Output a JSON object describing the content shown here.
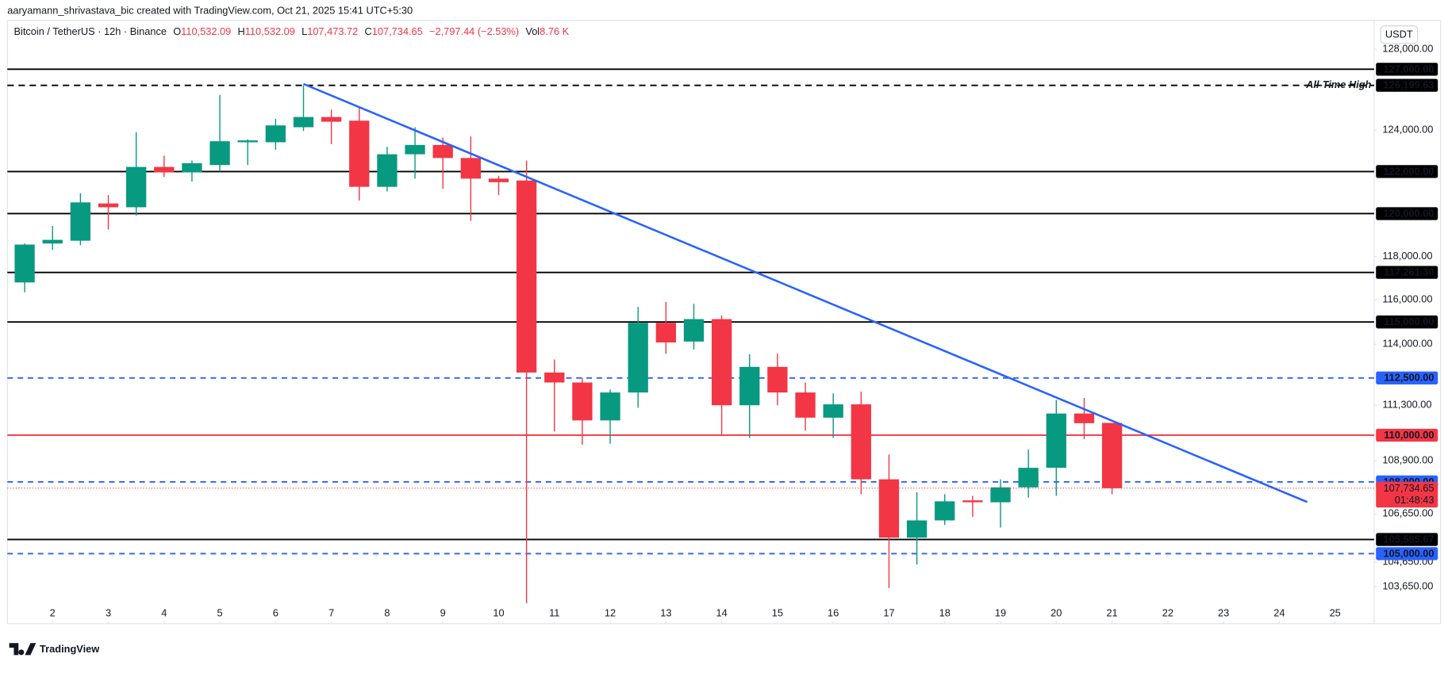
{
  "header": {
    "credit": "aaryamann_shrivastava_bic created with TradingView.com, Oct 21, 2025 15:41 UTC+5:30"
  },
  "footer": {
    "logo": "TradingView"
  },
  "chart_data": {
    "type": "candlestick",
    "legend": {
      "symbol": "Bitcoin / TetherUS · 12h · Binance",
      "o_key": "O",
      "o": "110,532.09",
      "h_key": "H",
      "h": "110,532.09",
      "l_key": "L",
      "l": "107,473.72",
      "c_key": "C",
      "c": "107,734.65",
      "change": "−2,797.44 (−2.53%)",
      "vol_key": "Vol",
      "vol": "8.76 K"
    },
    "currency": "USDT",
    "up_color": "#089981",
    "down_color": "#f23645",
    "log_scale": true,
    "grid": false,
    "x": [
      1.5,
      2,
      2.5,
      3,
      3.5,
      4,
      4.5,
      5,
      5.5,
      6,
      6.5,
      7,
      7.5,
      8,
      8.5,
      9,
      9.5,
      10,
      10.5,
      11,
      11.5,
      12,
      12.5,
      13,
      13.5,
      14,
      14.5,
      15,
      15.5,
      16,
      16.5,
      17,
      17.5,
      18,
      18.5,
      19,
      19.5,
      20,
      20.5,
      21
    ],
    "open": [
      116800,
      118600,
      118730,
      120480,
      120300,
      122220,
      121960,
      122310,
      123410,
      123410,
      124140,
      124640,
      124460,
      121270,
      122830,
      123280,
      122650,
      121660,
      121570,
      112740,
      112300,
      110640,
      111860,
      114960,
      114120,
      115130,
      111300,
      112990,
      111860,
      110760,
      111340,
      108110,
      105660,
      106380,
      107220,
      107140,
      107770,
      108600,
      110940,
      110532.09
    ],
    "high": [
      118600,
      119420,
      120970,
      120880,
      123900,
      122760,
      122530,
      125720,
      123550,
      124550,
      126199.63,
      125000,
      125090,
      123190,
      124140,
      123640,
      123690,
      121790,
      122530,
      113320,
      112500,
      111990,
      115690,
      115910,
      115820,
      115300,
      113550,
      113590,
      112300,
      111820,
      111900,
      109170,
      107560,
      107480,
      107410,
      108110,
      109380,
      111530,
      111620,
      110532.09
    ],
    "low": [
      116350,
      118300,
      118520,
      119250,
      119910,
      121740,
      121520,
      122000,
      122310,
      123050,
      123960,
      123320,
      120620,
      121050,
      121660,
      121180,
      119660,
      120880,
      102970,
      110160,
      109590,
      109630,
      111190,
      113570,
      113760,
      110040,
      109880,
      111300,
      110200,
      109880,
      107480,
      103590,
      104550,
      106190,
      106530,
      106080,
      107330,
      107410,
      109830,
      107473.72
    ],
    "close": [
      118550,
      118770,
      120530,
      120300,
      122220,
      121960,
      122400,
      123460,
      123500,
      124230,
      124640,
      124410,
      121270,
      122830,
      123280,
      122650,
      121660,
      121490,
      112740,
      112300,
      110640,
      111860,
      114960,
      114080,
      115130,
      111300,
      112990,
      111860,
      110760,
      111340,
      108110,
      105660,
      106380,
      107180,
      107140,
      107770,
      108600,
      110940,
      110520,
      107734.65
    ],
    "xlim": [
      1.19,
      25.7
    ],
    "xticks": [
      2,
      3,
      4,
      5,
      6,
      7,
      8,
      9,
      10,
      11,
      12,
      13,
      14,
      15,
      16,
      17,
      18,
      19,
      20,
      21,
      22,
      23,
      24,
      25
    ],
    "ylim": [
      102150,
      130500
    ],
    "yticks": [
      {
        "value": 128000,
        "label": "128,000.00"
      },
      {
        "value": 124000,
        "label": "124,000.00"
      },
      {
        "value": 118000,
        "label": "118,000.00"
      },
      {
        "value": 116000,
        "label": "116,000.00"
      },
      {
        "value": 114000,
        "label": "114,000.00"
      },
      {
        "value": 111300,
        "label": "111,300.00"
      },
      {
        "value": 108900,
        "label": "108,900.00"
      },
      {
        "value": 106650,
        "label": "106,650.00"
      },
      {
        "value": 104650,
        "label": "104,650.00"
      },
      {
        "value": 103650,
        "label": "103,650.00"
      }
    ],
    "levels": [
      {
        "value": 127000,
        "label": "127,000.00",
        "color": "#000000",
        "style": "solid"
      },
      {
        "value": 126199.63,
        "label": "126,199.63",
        "color": "#000000",
        "style": "dashed",
        "note": "All-Time High"
      },
      {
        "value": 122000,
        "label": "122,000.00",
        "color": "#000000",
        "style": "solid"
      },
      {
        "value": 120000,
        "label": "120,000.00",
        "color": "#000000",
        "style": "solid"
      },
      {
        "value": 117261.3,
        "label": "117,261.30",
        "color": "#000000",
        "style": "solid"
      },
      {
        "value": 115000,
        "label": "115,000.00",
        "color": "#000000",
        "style": "solid"
      },
      {
        "value": 112500,
        "label": "112,500.00",
        "color": "#2962ff",
        "style": "dashed"
      },
      {
        "value": 110000,
        "label": "110,000.00",
        "color": "#f23645",
        "style": "solid"
      },
      {
        "value": 108000,
        "label": "108,000.00",
        "color": "#2962ff",
        "style": "dashed"
      },
      {
        "value": 105585.67,
        "label": "105,585.67",
        "color": "#000000",
        "style": "solid"
      },
      {
        "value": 105000,
        "label": "105,000.00",
        "color": "#2962ff",
        "style": "dashed"
      }
    ],
    "last_price": {
      "value": 107734.65,
      "label": "107,734.65",
      "countdown": "01:48:43",
      "color": "#f23645"
    },
    "trendline": {
      "x": [
        6.5,
        24.5
      ],
      "values": [
        126270,
        107150
      ],
      "color": "#2962ff"
    }
  }
}
